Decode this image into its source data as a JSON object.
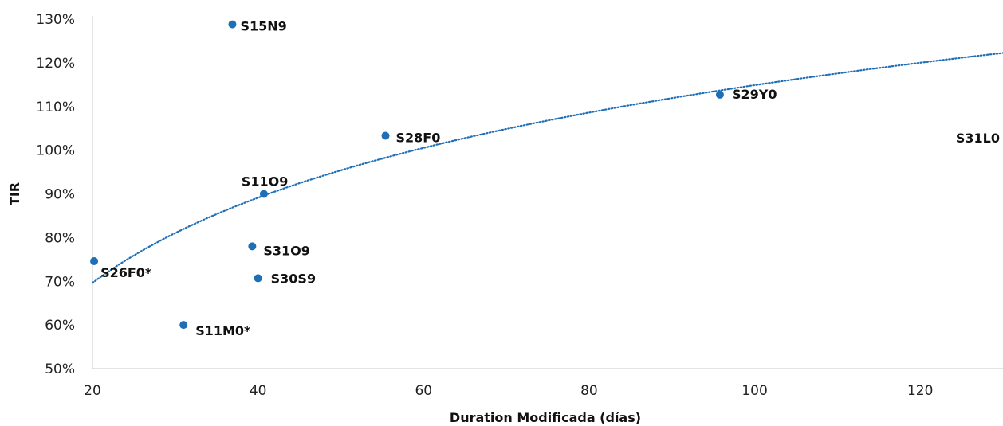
{
  "chart_data": {
    "type": "scatter",
    "xlabel": "Duration Modificada (días)",
    "ylabel": "TIR",
    "xlim": [
      20,
      130
    ],
    "ylim": [
      50,
      130
    ],
    "x_ticks": [
      "20",
      "40",
      "60",
      "80",
      "100",
      "120"
    ],
    "y_ticks": [
      "50%",
      "60%",
      "70%",
      "80%",
      "90%",
      "100%",
      "110%",
      "120%",
      "130%"
    ],
    "grid": false,
    "marker_color": "#1f6fb6",
    "trendline": {
      "type": "logarithmic",
      "style": "dotted",
      "color": "#1f6fb6"
    },
    "points": [
      {
        "label": "S26F0*",
        "x": 20.2,
        "y": 74.6
      },
      {
        "label": "S11M0*",
        "x": 31.0,
        "y": 60.0
      },
      {
        "label": "S15N9",
        "x": 36.9,
        "y": 128.8
      },
      {
        "label": "S31O9",
        "x": 39.3,
        "y": 78.0
      },
      {
        "label": "S30S9",
        "x": 40.0,
        "y": 70.7
      },
      {
        "label": "S11O9",
        "x": 40.7,
        "y": 90.0
      },
      {
        "label": "S28F0",
        "x": 55.4,
        "y": 103.3
      },
      {
        "label": "S29Y0",
        "x": 95.8,
        "y": 112.7
      },
      {
        "label": "S31L0",
        "x": null,
        "y": null
      }
    ]
  }
}
